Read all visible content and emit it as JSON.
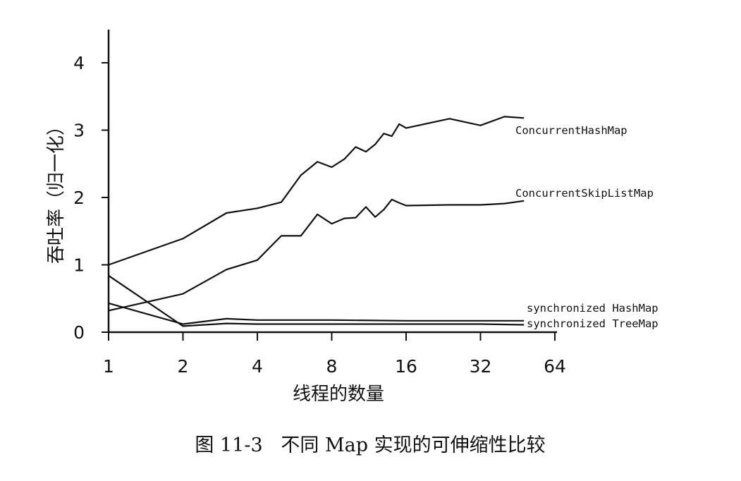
{
  "chart_data": {
    "type": "line",
    "title": "",
    "caption": "图 11-3   不同 Map 实现的可伸缩性比较",
    "xlabel": "线程的数量",
    "ylabel": "吞吐率（归一化）",
    "x_scale": "log2",
    "xlim": [
      1,
      64
    ],
    "ylim": [
      0,
      4.5
    ],
    "x_ticks": [
      1,
      2,
      4,
      8,
      16,
      32,
      64
    ],
    "x_tick_labels": [
      "1",
      "2",
      "4",
      "8",
      "16",
      "32",
      "64"
    ],
    "y_ticks": [
      0,
      1,
      2,
      3,
      4
    ],
    "y_tick_labels": [
      "0",
      "1",
      "2",
      "3",
      "4"
    ],
    "grid": false,
    "series": [
      {
        "name": "ConcurrentHashMap",
        "x": [
          1,
          2,
          3,
          4,
          5,
          6,
          7,
          8,
          9,
          10,
          11,
          12,
          13,
          14,
          15,
          16,
          24,
          32,
          40,
          48
        ],
        "y": [
          1.0,
          1.39,
          1.77,
          1.84,
          1.93,
          2.33,
          2.53,
          2.45,
          2.57,
          2.75,
          2.68,
          2.79,
          2.95,
          2.91,
          3.09,
          3.03,
          3.17,
          3.07,
          3.2,
          3.18
        ]
      },
      {
        "name": "ConcurrentSkipListMap",
        "x": [
          1,
          2,
          3,
          4,
          5,
          6,
          7,
          8,
          9,
          10,
          11,
          12,
          13,
          14,
          15,
          16,
          24,
          32,
          40,
          48
        ],
        "y": [
          0.32,
          0.57,
          0.93,
          1.07,
          1.43,
          1.43,
          1.75,
          1.61,
          1.69,
          1.7,
          1.86,
          1.71,
          1.82,
          1.97,
          1.92,
          1.88,
          1.89,
          1.89,
          1.91,
          1.95
        ]
      },
      {
        "name": "synchronized HashMap",
        "x": [
          1,
          2,
          3,
          4,
          8,
          16,
          32,
          48
        ],
        "y": [
          0.43,
          0.12,
          0.2,
          0.18,
          0.18,
          0.17,
          0.17,
          0.17
        ]
      },
      {
        "name": "synchronized TreeMap",
        "x": [
          1,
          2,
          3,
          4,
          8,
          16,
          32,
          48
        ],
        "y": [
          0.84,
          0.09,
          0.13,
          0.12,
          0.12,
          0.12,
          0.12,
          0.11
        ]
      }
    ]
  }
}
